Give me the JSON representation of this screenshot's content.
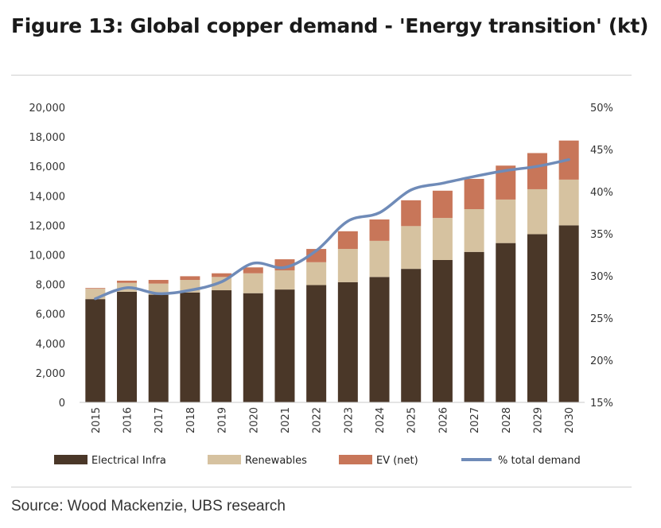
{
  "header": {
    "title": "Figure 13: Global copper demand - 'Energy transition' (kt)"
  },
  "footer": {
    "source": "Source: Wood Mackenzie, UBS research"
  },
  "chart_data": {
    "type": "bar",
    "stacked": true,
    "title": "Figure 13: Global copper demand - 'Energy transition' (kt)",
    "categories": [
      "2015",
      "2016",
      "2017",
      "2018",
      "2019",
      "2020",
      "2021",
      "2022",
      "2023",
      "2024",
      "2025",
      "2026",
      "2027",
      "2028",
      "2029",
      "2030"
    ],
    "series": [
      {
        "name": "Electrical Infra",
        "axis": "left",
        "color": "#4a3728",
        "values": [
          7000,
          7500,
          7300,
          7450,
          7600,
          7400,
          7650,
          7950,
          8150,
          8500,
          9050,
          9650,
          10200,
          10800,
          11400,
          12000
        ]
      },
      {
        "name": "Renewables",
        "axis": "left",
        "color": "#d6c2a0",
        "values": [
          700,
          600,
          750,
          850,
          900,
          1350,
          1300,
          1550,
          2250,
          2450,
          2900,
          2850,
          2900,
          2950,
          3050,
          3100
        ]
      },
      {
        "name": "EV (net)",
        "axis": "left",
        "color": "#c87659",
        "values": [
          50,
          150,
          250,
          250,
          250,
          400,
          750,
          900,
          1200,
          1450,
          1750,
          1850,
          2050,
          2300,
          2450,
          2650
        ]
      },
      {
        "name": "% total demand",
        "axis": "right",
        "type": "line",
        "color": "#6f8bb8",
        "values": [
          27.3,
          28.6,
          27.9,
          28.3,
          29.3,
          31.5,
          31.0,
          33.0,
          36.5,
          37.5,
          40.2,
          41.0,
          41.8,
          42.5,
          43.0,
          43.8
        ]
      }
    ],
    "yaxis_left": {
      "min": 0,
      "max": 20000,
      "step": 2000,
      "tick_labels": [
        "0",
        "2,000",
        "4,000",
        "6,000",
        "8,000",
        "10,000",
        "12,000",
        "14,000",
        "16,000",
        "18,000",
        "20,000"
      ]
    },
    "yaxis_right": {
      "min": 15,
      "max": 50,
      "step": 5,
      "tick_labels": [
        "15%",
        "20%",
        "25%",
        "30%",
        "35%",
        "40%",
        "45%",
        "50%"
      ]
    },
    "legend": {
      "placement": "bottom",
      "items": [
        {
          "label": "Electrical Infra",
          "kind": "box",
          "color": "#4a3728"
        },
        {
          "label": "Renewables",
          "kind": "box",
          "color": "#d6c2a0"
        },
        {
          "label": "EV (net)",
          "kind": "box",
          "color": "#c87659"
        },
        {
          "label": "% total demand",
          "kind": "line",
          "color": "#6f8bb8"
        }
      ]
    },
    "grid": false
  }
}
